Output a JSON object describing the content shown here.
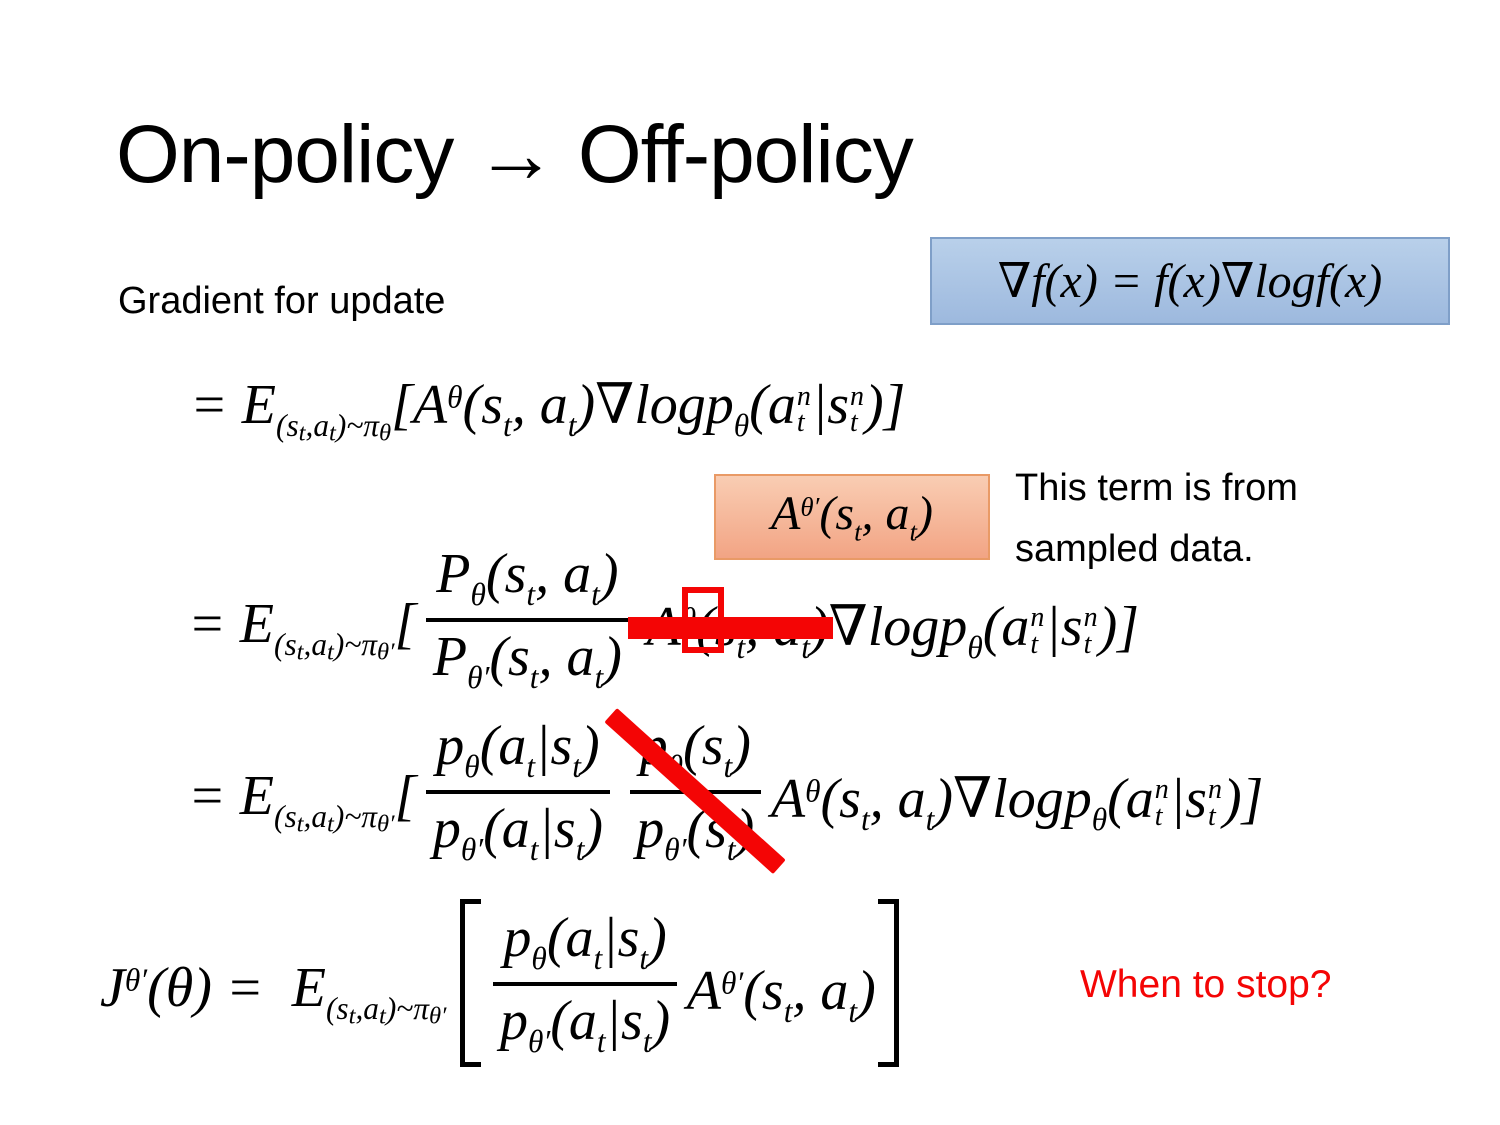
{
  "title": "On-policy → Off-policy",
  "subtitle": "Gradient for update",
  "note": {
    "line1": "This term is from",
    "line2": "sampled data."
  },
  "when_to_stop": "When to stop?",
  "colors": {
    "accent_red": "#f40505",
    "blue_box_top": "#b9d0ea",
    "blue_box_bottom": "#9db9de",
    "blue_box_border": "#7f9fc8",
    "orange_box_top": "#f9cdb3",
    "orange_box_bottom": "#f2a484",
    "orange_box_border": "#e99a66"
  },
  "blue_box": {
    "formula": [
      {
        "t": "∇f(x) = f(x)∇logf(x)"
      }
    ]
  },
  "orange_box": {
    "formula": [
      {
        "t": "A"
      },
      {
        "t": "θ′",
        "s": "sup"
      },
      {
        "t": "(s"
      },
      {
        "t": "t",
        "s": "sub"
      },
      {
        "t": ", a"
      },
      {
        "t": "t",
        "s": "sub"
      },
      {
        "t": ")"
      }
    ]
  },
  "equations": {
    "eq1": {
      "runs": [
        {
          "t": "= "
        },
        {
          "t": "E"
        },
        {
          "t": "(s",
          "s": "sub"
        },
        {
          "t": "t",
          "s": "sub2"
        },
        {
          "t": ",a",
          "s": "sub"
        },
        {
          "t": "t",
          "s": "sub2"
        },
        {
          "t": ")~π",
          "s": "sub"
        },
        {
          "t": "θ",
          "s": "sub2"
        },
        {
          "t": "["
        },
        {
          "t": "A"
        },
        {
          "t": "θ",
          "s": "sup"
        },
        {
          "t": "(s"
        },
        {
          "t": "t",
          "s": "sub"
        },
        {
          "t": ", a"
        },
        {
          "t": "t",
          "s": "sub"
        },
        {
          "t": ")∇logp"
        },
        {
          "t": "θ",
          "s": "sub"
        },
        {
          "t": "("
        },
        {
          "t": "a"
        },
        {
          "up": "n",
          "dn": "t"
        },
        {
          "t": "|s"
        },
        {
          "up": "n",
          "dn": "t"
        },
        {
          "t": ")]"
        }
      ]
    },
    "eq2": {
      "lhs": [
        {
          "t": "= "
        },
        {
          "t": "E"
        },
        {
          "t": "(s",
          "s": "sub"
        },
        {
          "t": "t",
          "s": "sub2"
        },
        {
          "t": ",a",
          "s": "sub"
        },
        {
          "t": "t",
          "s": "sub2"
        },
        {
          "t": ")~π",
          "s": "sub"
        },
        {
          "t": "θ′",
          "s": "sub2"
        },
        {
          "t": "["
        }
      ],
      "frac1": {
        "num": [
          {
            "t": "P"
          },
          {
            "t": "θ",
            "s": "sub"
          },
          {
            "t": "(s"
          },
          {
            "t": "t",
            "s": "sub"
          },
          {
            "t": ", a"
          },
          {
            "t": "t",
            "s": "sub"
          },
          {
            "t": ")"
          }
        ],
        "den": [
          {
            "t": "P"
          },
          {
            "t": "θ′",
            "s": "sub"
          },
          {
            "t": "(s"
          },
          {
            "t": "t",
            "s": "sub"
          },
          {
            "t": ", a"
          },
          {
            "t": "t",
            "s": "sub"
          },
          {
            "t": ")"
          }
        ]
      },
      "struck": [
        {
          "t": "A"
        },
        {
          "t": "θ",
          "s": "sup"
        },
        {
          "t": "(s"
        },
        {
          "t": "t",
          "s": "sub"
        },
        {
          "t": ", a"
        },
        {
          "t": "t",
          "s": "sub"
        },
        {
          "t": ")"
        }
      ],
      "rhs": [
        {
          "t": "∇logp"
        },
        {
          "t": "θ",
          "s": "sub"
        },
        {
          "t": "("
        },
        {
          "t": "a"
        },
        {
          "up": "n",
          "dn": "t"
        },
        {
          "t": "|s"
        },
        {
          "up": "n",
          "dn": "t"
        },
        {
          "t": ")]"
        }
      ]
    },
    "eq3": {
      "lhs": [
        {
          "t": "= "
        },
        {
          "t": "E"
        },
        {
          "t": "(s",
          "s": "sub"
        },
        {
          "t": "t",
          "s": "sub2"
        },
        {
          "t": ",a",
          "s": "sub"
        },
        {
          "t": "t",
          "s": "sub2"
        },
        {
          "t": ")~π",
          "s": "sub"
        },
        {
          "t": "θ′",
          "s": "sub2"
        },
        {
          "t": "["
        }
      ],
      "frac1": {
        "num": [
          {
            "t": "p"
          },
          {
            "t": "θ",
            "s": "sub"
          },
          {
            "t": "(a"
          },
          {
            "t": "t",
            "s": "sub"
          },
          {
            "t": "|s"
          },
          {
            "t": "t",
            "s": "sub"
          },
          {
            "t": ")"
          }
        ],
        "den": [
          {
            "t": "p"
          },
          {
            "t": "θ′",
            "s": "sub"
          },
          {
            "t": "(a"
          },
          {
            "t": "t",
            "s": "sub"
          },
          {
            "t": "|s"
          },
          {
            "t": "t",
            "s": "sub"
          },
          {
            "t": ")"
          }
        ]
      },
      "frac2": {
        "num": [
          {
            "t": "p"
          },
          {
            "t": "θ",
            "s": "sub"
          },
          {
            "t": "(s"
          },
          {
            "t": "t",
            "s": "sub"
          },
          {
            "t": ")"
          }
        ],
        "den": [
          {
            "t": "p"
          },
          {
            "t": "θ′",
            "s": "sub"
          },
          {
            "t": "(s"
          },
          {
            "t": "t",
            "s": "sub"
          },
          {
            "t": ")"
          }
        ]
      },
      "rhs": [
        {
          "t": "A"
        },
        {
          "t": "θ",
          "s": "sup"
        },
        {
          "t": "(s"
        },
        {
          "t": "t",
          "s": "sub"
        },
        {
          "t": ", a"
        },
        {
          "t": "t",
          "s": "sub"
        },
        {
          "t": ")∇logp"
        },
        {
          "t": "θ",
          "s": "sub"
        },
        {
          "t": "("
        },
        {
          "t": "a"
        },
        {
          "up": "n",
          "dn": "t"
        },
        {
          "t": "|s"
        },
        {
          "up": "n",
          "dn": "t"
        },
        {
          "t": ")]"
        }
      ]
    },
    "eq4": {
      "lhs": [
        {
          "t": "J"
        },
        {
          "t": "θ′",
          "s": "sup"
        },
        {
          "t": "(θ) =  "
        },
        {
          "t": "E"
        },
        {
          "t": "(s",
          "s": "sub"
        },
        {
          "t": "t",
          "s": "sub2"
        },
        {
          "t": ",a",
          "s": "sub"
        },
        {
          "t": "t",
          "s": "sub2"
        },
        {
          "t": ")~π",
          "s": "sub"
        },
        {
          "t": "θ′",
          "s": "sub2"
        }
      ],
      "frac1": {
        "num": [
          {
            "t": "p"
          },
          {
            "t": "θ",
            "s": "sub"
          },
          {
            "t": "(a"
          },
          {
            "t": "t",
            "s": "sub"
          },
          {
            "t": "|s"
          },
          {
            "t": "t",
            "s": "sub"
          },
          {
            "t": ")"
          }
        ],
        "den": [
          {
            "t": "p"
          },
          {
            "t": "θ′",
            "s": "sub"
          },
          {
            "t": "(a"
          },
          {
            "t": "t",
            "s": "sub"
          },
          {
            "t": "|s"
          },
          {
            "t": "t",
            "s": "sub"
          },
          {
            "t": ")"
          }
        ]
      },
      "rhs": [
        {
          "t": "A"
        },
        {
          "t": "θ′",
          "s": "sup"
        },
        {
          "t": "(s"
        },
        {
          "t": "t",
          "s": "sub"
        },
        {
          "t": ", a"
        },
        {
          "t": "t",
          "s": "sub"
        },
        {
          "t": ")"
        }
      ]
    }
  }
}
